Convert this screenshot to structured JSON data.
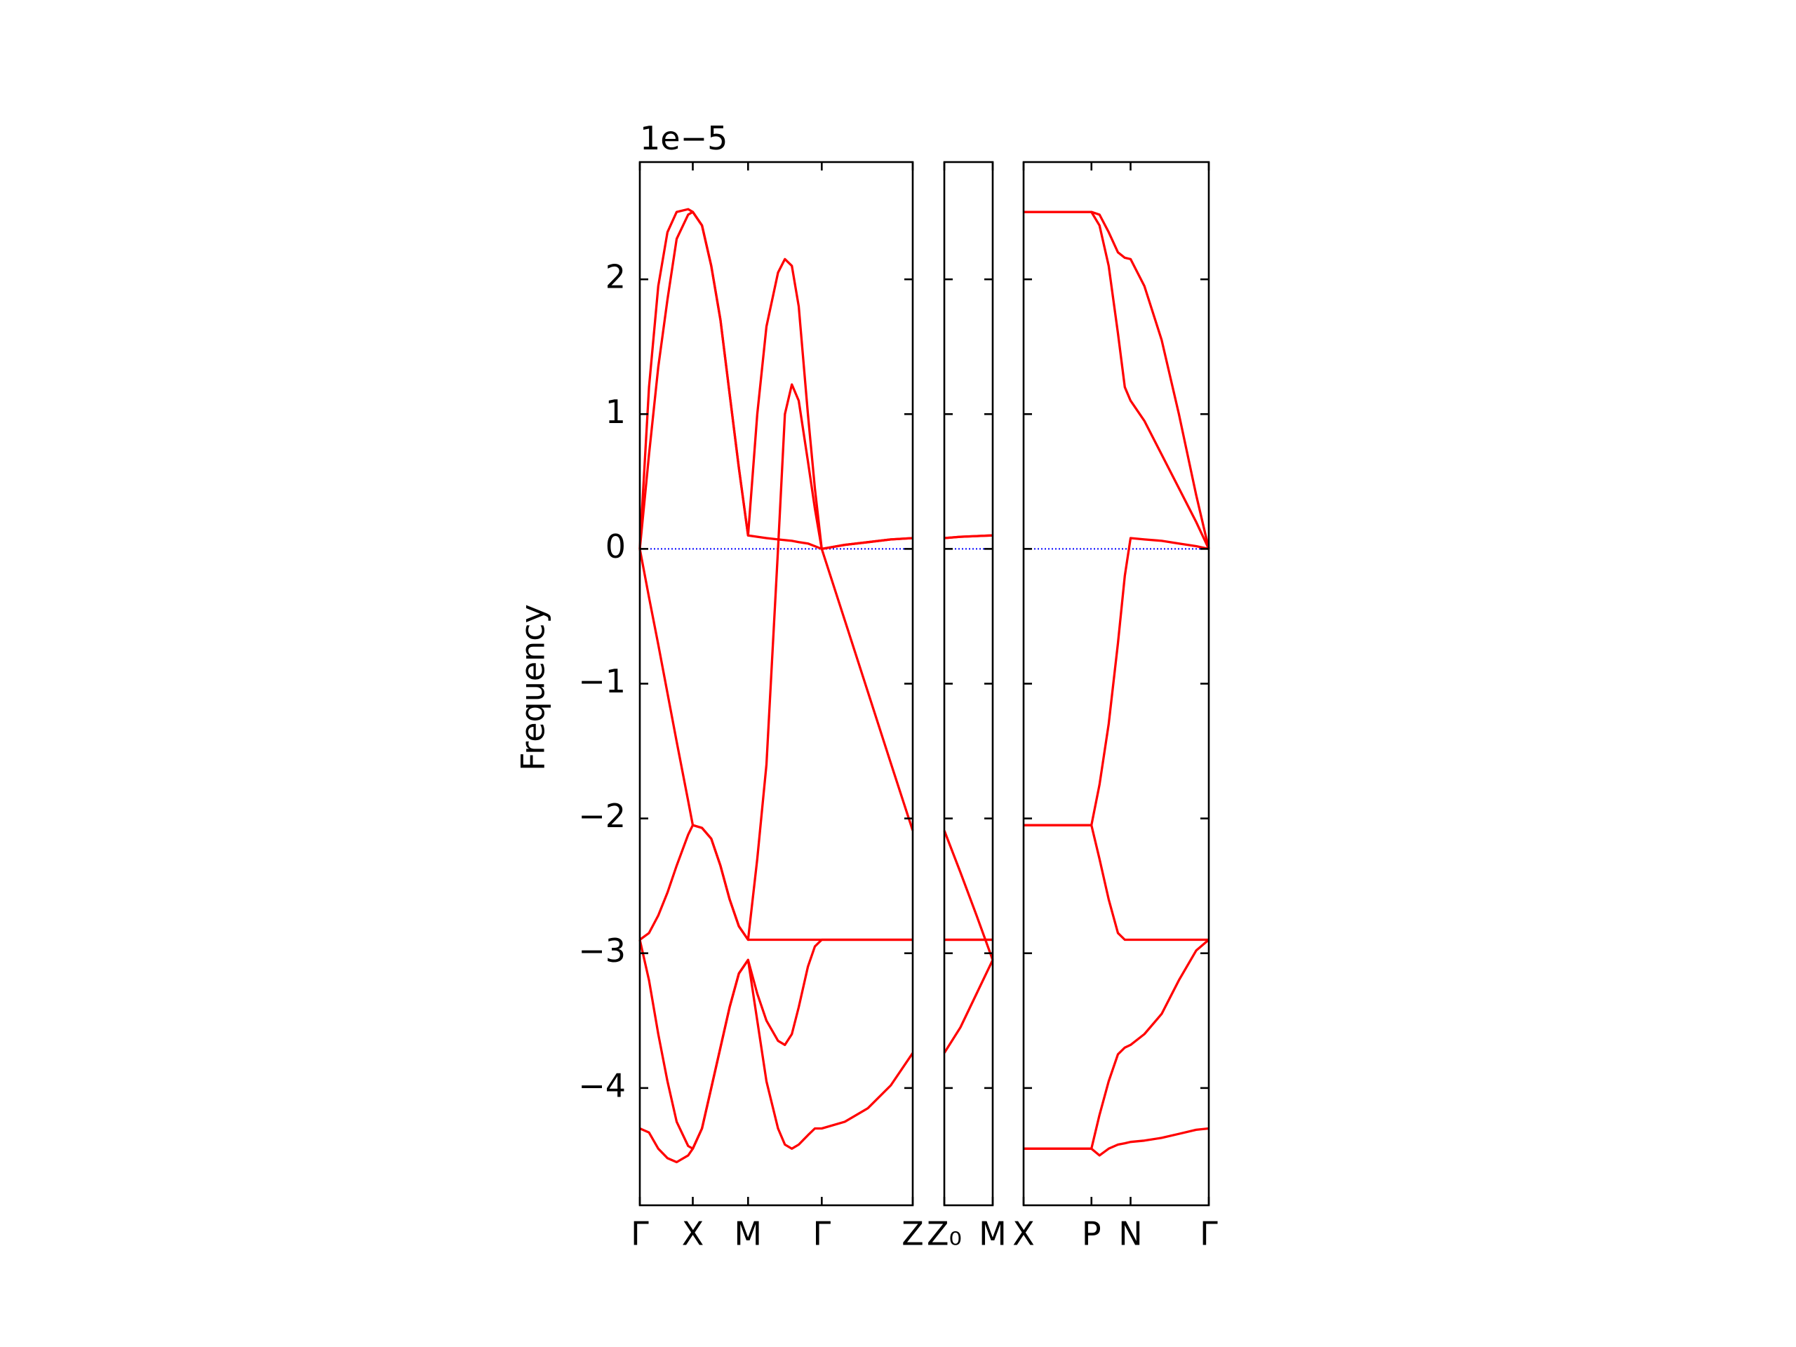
{
  "chart_data": [
    {
      "type": "line",
      "ylabel": "Frequency",
      "y_offset_text": "1e−5",
      "ylim": [
        -4.87,
        2.87
      ],
      "yticks": [
        {
          "value": -4,
          "label": "−4"
        },
        {
          "value": -3,
          "label": "−3"
        },
        {
          "value": -2,
          "label": "−2"
        },
        {
          "value": -1,
          "label": "−1"
        },
        0,
        1,
        2
      ],
      "xlim": [
        0,
        2.37
      ],
      "xticks": [
        {
          "value": 0,
          "label": "Γ"
        },
        {
          "value": 0.46,
          "label": "X"
        },
        {
          "value": 0.94,
          "label": "M"
        },
        {
          "value": 1.58,
          "label": "Γ"
        },
        {
          "value": 2.37,
          "label": "Z"
        }
      ],
      "hline": 0,
      "hline_color": "#0000ff",
      "x": [
        0,
        0.08,
        0.16,
        0.24,
        0.32,
        0.42,
        0.46,
        0.54,
        0.62,
        0.7,
        0.78,
        0.86,
        0.94,
        1.02,
        1.1,
        1.2,
        1.26,
        1.32,
        1.38,
        1.46,
        1.52,
        1.58,
        1.78,
        1.98,
        2.18,
        2.37
      ],
      "series": [
        {
          "color": "#ff0000",
          "values": [
            0,
            1.2,
            1.95,
            2.35,
            2.5,
            2.52,
            2.5,
            2.4,
            2.1,
            1.7,
            1.15,
            0.6,
            0.1,
            1.0,
            1.65,
            2.05,
            2.15,
            2.1,
            1.8,
            1.0,
            0.45,
            0,
            0.03,
            0.05,
            0.07,
            0.08
          ]
        },
        {
          "color": "#ff0000",
          "values": [
            0,
            0.7,
            1.35,
            1.85,
            2.3,
            2.48,
            2.5,
            2.4,
            2.1,
            1.7,
            1.15,
            0.6,
            0.1,
            0.09,
            0.08,
            0.07,
            0.065,
            0.06,
            0.05,
            0.04,
            0.02,
            0,
            0.03,
            0.05,
            0.07,
            0.08
          ]
        },
        {
          "color": "#ff0000",
          "values": [
            0,
            -0.36,
            -0.71,
            -1.07,
            -1.43,
            -1.87,
            -2.05,
            -2.07,
            -2.15,
            -2.35,
            -2.6,
            -2.8,
            -2.9,
            -2.3,
            -1.6,
            0,
            1.0,
            1.22,
            1.1,
            0.65,
            0.3,
            0,
            -0.53,
            -1.06,
            -1.59,
            -2.09
          ]
        },
        {
          "color": "#ff0000",
          "values": [
            -2.9,
            -2.85,
            -2.72,
            -2.55,
            -2.35,
            -2.12,
            -2.05,
            -2.07,
            -2.15,
            -2.35,
            -2.6,
            -2.8,
            -2.9,
            -2.9,
            -2.9,
            -2.9,
            -2.9,
            -2.9,
            -2.9,
            -2.9,
            -2.9,
            -2.9,
            -2.9,
            -2.9,
            -2.9,
            -2.9
          ]
        },
        {
          "color": "#ff0000",
          "values": [
            -2.9,
            -3.2,
            -3.6,
            -3.95,
            -4.25,
            -4.43,
            -4.45,
            -4.3,
            -4.0,
            -3.7,
            -3.4,
            -3.15,
            -3.05,
            -3.3,
            -3.5,
            -3.65,
            -3.68,
            -3.6,
            -3.4,
            -3.1,
            -2.95,
            -2.9,
            -2.9,
            -2.9,
            -2.9,
            -2.9
          ]
        },
        {
          "color": "#ff0000",
          "values": [
            -4.3,
            -4.33,
            -4.45,
            -4.52,
            -4.55,
            -4.5,
            -4.45,
            -4.3,
            -4.0,
            -3.7,
            -3.4,
            -3.15,
            -3.05,
            -3.5,
            -3.95,
            -4.3,
            -4.42,
            -4.45,
            -4.42,
            -4.35,
            -4.3,
            -4.3,
            -4.25,
            -4.15,
            -3.98,
            -3.74
          ]
        }
      ]
    },
    {
      "type": "line",
      "ylim": [
        -4.87,
        2.87
      ],
      "yticks": [
        -4,
        -3,
        -2,
        -1,
        0,
        1,
        2
      ],
      "xlim": [
        0,
        0.42
      ],
      "xticks": [
        {
          "value": 0,
          "label": "Z₀"
        },
        {
          "value": 0.42,
          "label": "M"
        }
      ],
      "hline": 0,
      "hline_color": "#0000ff",
      "x": [
        0,
        0.14,
        0.28,
        0.42
      ],
      "series": [
        {
          "color": "#ff0000",
          "values": [
            0.08,
            0.09,
            0.095,
            0.1
          ]
        },
        {
          "color": "#ff0000",
          "values": [
            0.08,
            0.09,
            0.095,
            0.1
          ]
        },
        {
          "color": "#ff0000",
          "values": [
            -2.09,
            -2.4,
            -2.72,
            -3.05
          ]
        },
        {
          "color": "#ff0000",
          "values": [
            -2.9,
            -2.9,
            -2.9,
            -2.9
          ]
        },
        {
          "color": "#ff0000",
          "values": [
            -2.9,
            -2.9,
            -2.9,
            -2.9
          ]
        },
        {
          "color": "#ff0000",
          "values": [
            -3.74,
            -3.55,
            -3.3,
            -3.05
          ]
        }
      ]
    },
    {
      "type": "line",
      "ylim": [
        -4.87,
        2.87
      ],
      "yticks": [
        -4,
        -3,
        -2,
        -1,
        0,
        1,
        2
      ],
      "xlim": [
        0,
        1.61
      ],
      "xticks": [
        {
          "value": 0,
          "label": "X"
        },
        {
          "value": 0.59,
          "label": "P"
        },
        {
          "value": 0.93,
          "label": "N"
        },
        {
          "value": 1.61,
          "label": "Γ"
        }
      ],
      "hline": 0,
      "hline_color": "#0000ff",
      "x": [
        0,
        0.3,
        0.59,
        0.66,
        0.74,
        0.82,
        0.88,
        0.93,
        1.05,
        1.2,
        1.35,
        1.5,
        1.61
      ],
      "series": [
        {
          "color": "#ff0000",
          "values": [
            2.5,
            2.5,
            2.5,
            2.48,
            2.35,
            2.2,
            2.16,
            2.15,
            1.95,
            1.55,
            1.0,
            0.4,
            0
          ]
        },
        {
          "color": "#ff0000",
          "values": [
            2.5,
            2.5,
            2.5,
            2.4,
            2.1,
            1.6,
            1.2,
            1.1,
            0.95,
            0.7,
            0.45,
            0.2,
            0
          ]
        },
        {
          "color": "#ff0000",
          "values": [
            -2.05,
            -2.05,
            -2.05,
            -1.75,
            -1.3,
            -0.7,
            -0.2,
            0.08,
            0.07,
            0.06,
            0.04,
            0.02,
            0
          ]
        },
        {
          "color": "#ff0000",
          "values": [
            -2.05,
            -2.05,
            -2.05,
            -2.3,
            -2.6,
            -2.85,
            -2.9,
            -2.9,
            -2.9,
            -2.9,
            -2.9,
            -2.9,
            -2.9
          ]
        },
        {
          "color": "#ff0000",
          "values": [
            -4.45,
            -4.45,
            -4.45,
            -4.2,
            -3.95,
            -3.75,
            -3.7,
            -3.68,
            -3.6,
            -3.45,
            -3.2,
            -2.98,
            -2.9
          ]
        },
        {
          "color": "#ff0000",
          "values": [
            -4.45,
            -4.45,
            -4.45,
            -4.5,
            -4.45,
            -4.42,
            -4.41,
            -4.4,
            -4.39,
            -4.37,
            -4.34,
            -4.31,
            -4.3
          ]
        }
      ]
    }
  ]
}
